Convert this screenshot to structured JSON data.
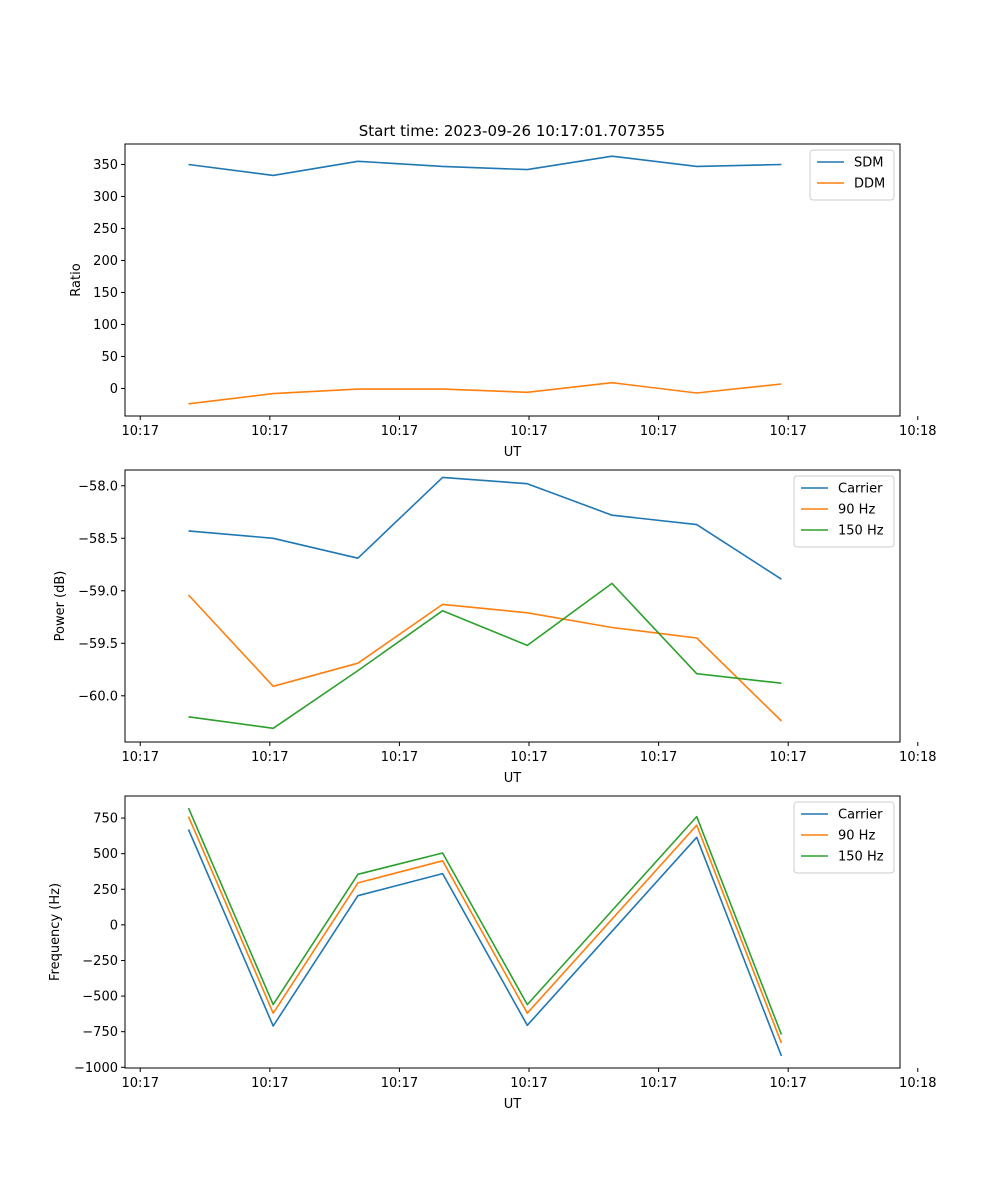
{
  "colors": {
    "series_blue": "#1f77b4",
    "series_orange": "#ff7f0e",
    "series_green": "#2ca02c",
    "axis": "#000000",
    "legend_border": "#cccccc"
  },
  "chart_data": [
    {
      "type": "line",
      "title": "Start time: 2023-09-26 10:17:01.707355",
      "xlabel": "UT",
      "ylabel": "Ratio",
      "xlim": [
        -0.75,
        8.4
      ],
      "ylim": [
        -43,
        382
      ],
      "x": [
        0,
        1,
        2,
        3,
        4,
        5,
        6,
        7
      ],
      "xticks": [
        -0.57,
        0.96,
        2.49,
        4.02,
        5.55,
        7.08,
        8.61
      ],
      "xtick_labels": [
        "10:17",
        "10:17",
        "10:17",
        "10:17",
        "10:17",
        "10:17",
        "10:18"
      ],
      "yticks": [
        0,
        50,
        100,
        150,
        200,
        250,
        300,
        350
      ],
      "ytick_labels": [
        "0",
        "50",
        "100",
        "150",
        "200",
        "250",
        "300",
        "350"
      ],
      "grid": false,
      "legend_position": "top-right",
      "series": [
        {
          "name": "SDM",
          "color": "#1f77b4",
          "values": [
            350,
            333,
            355,
            347,
            342,
            363,
            347,
            350
          ]
        },
        {
          "name": "DDM",
          "color": "#ff7f0e",
          "values": [
            -24,
            -8,
            -1,
            -1,
            -6,
            9,
            -7,
            7
          ]
        }
      ]
    },
    {
      "type": "line",
      "title": "",
      "xlabel": "UT",
      "ylabel": "Power (dB)",
      "xlim": [
        -0.75,
        8.4
      ],
      "ylim": [
        -60.44,
        -57.85
      ],
      "x": [
        0,
        1,
        2,
        3,
        4,
        5,
        6,
        7
      ],
      "xticks": [
        -0.57,
        0.96,
        2.49,
        4.02,
        5.55,
        7.08,
        8.61
      ],
      "xtick_labels": [
        "10:17",
        "10:17",
        "10:17",
        "10:17",
        "10:17",
        "10:17",
        "10:18"
      ],
      "yticks": [
        -58.0,
        -58.5,
        -59.0,
        -59.5,
        -60.0
      ],
      "ytick_labels": [
        "−58.0",
        "−58.5",
        "−59.0",
        "−59.5",
        "−60.0"
      ],
      "grid": false,
      "legend_position": "top-right",
      "series": [
        {
          "name": "Carrier",
          "color": "#1f77b4",
          "values": [
            -58.43,
            -58.5,
            -58.69,
            -57.92,
            -57.98,
            -58.28,
            -58.37,
            -58.89
          ]
        },
        {
          "name": "90 Hz",
          "color": "#ff7f0e",
          "values": [
            -59.04,
            -59.91,
            -59.69,
            -59.13,
            -59.21,
            -59.35,
            -59.45,
            -60.24
          ]
        },
        {
          "name": "150 Hz",
          "color": "#2ca02c",
          "values": [
            -60.2,
            -60.31,
            -59.76,
            -59.19,
            -59.52,
            -58.93,
            -59.79,
            -59.88
          ]
        }
      ]
    },
    {
      "type": "line",
      "title": "",
      "xlabel": "UT",
      "ylabel": "Frequency (Hz)",
      "xlim": [
        -0.75,
        8.4
      ],
      "ylim": [
        -1005,
        905
      ],
      "x": [
        0,
        1,
        2,
        3,
        4,
        5,
        6,
        7
      ],
      "xticks": [
        -0.57,
        0.96,
        2.49,
        4.02,
        5.55,
        7.08,
        8.61
      ],
      "xtick_labels": [
        "10:17",
        "10:17",
        "10:17",
        "10:17",
        "10:17",
        "10:17",
        "10:18"
      ],
      "yticks": [
        750,
        500,
        250,
        0,
        -250,
        -500,
        -750,
        -1000
      ],
      "ytick_labels": [
        "750",
        "500",
        "250",
        "0",
        "−250",
        "−500",
        "−750",
        "−1000"
      ],
      "grid": false,
      "legend_position": "top-right",
      "series": [
        {
          "name": "Carrier",
          "color": "#1f77b4",
          "values": [
            670,
            -710,
            205,
            360,
            -705,
            -45,
            615,
            -920
          ]
        },
        {
          "name": "90 Hz",
          "color": "#ff7f0e",
          "values": [
            760,
            -620,
            295,
            450,
            -620,
            40,
            700,
            -830
          ]
        },
        {
          "name": "150 Hz",
          "color": "#2ca02c",
          "values": [
            820,
            -560,
            355,
            505,
            -560,
            100,
            760,
            -770
          ]
        }
      ]
    }
  ]
}
